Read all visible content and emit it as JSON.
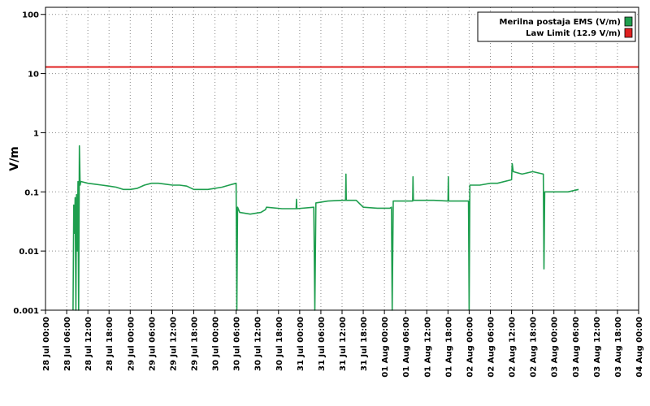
{
  "chart_data": {
    "type": "line",
    "title": "",
    "xlabel": "",
    "ylabel": "V/m",
    "y_scale": "log",
    "ylim": [
      0.001,
      100
    ],
    "y_ticks": [
      {
        "value": 100,
        "label": "100"
      },
      {
        "value": 10,
        "label": "10"
      },
      {
        "value": 1,
        "label": "1"
      },
      {
        "value": 0.1,
        "label": "0.1"
      },
      {
        "value": 0.01,
        "label": "0.01"
      },
      {
        "value": 0.001,
        "label": "0.001"
      }
    ],
    "x_unit": "hours since first tick (28 Jul 00:00)",
    "xlim": [
      0,
      168
    ],
    "x_ticks": [
      "28 Jul 00:00",
      "28 Jul 06:00",
      "28 Jul 12:00",
      "28 Jul 18:00",
      "29 Jul 00:00",
      "29 Jul 06:00",
      "29 Jul 12:00",
      "29 Jul 18:00",
      "30 Jul 00:00",
      "30 Jul 06:00",
      "30 Jul 12:00",
      "30 Jul 18:00",
      "31 Jul 00:00",
      "31 Jul 06:00",
      "31 Jul 12:00",
      "31 Jul 18:00",
      "01 Aug 00:00",
      "01 Aug 06:00",
      "01 Aug 12:00",
      "01 Aug 18:00",
      "02 Aug 00:00",
      "02 Aug 06:00",
      "02 Aug 12:00",
      "02 Aug 18:00",
      "03 Aug 00:00",
      "03 Aug 06:00",
      "03 Aug 12:00",
      "03 Aug 18:00",
      "04 Aug 00:00"
    ],
    "grid": true,
    "legend_position": "top-right",
    "series": [
      {
        "name": "Merilna postaja EMS (V/m)",
        "color": "#1e9e4e",
        "points": [
          [
            7.8,
            0.001
          ],
          [
            8.0,
            0.06
          ],
          [
            8.2,
            0.02
          ],
          [
            8.4,
            0.08
          ],
          [
            8.6,
            0.001
          ],
          [
            8.8,
            0.09
          ],
          [
            9.0,
            0.01
          ],
          [
            9.2,
            0.15
          ],
          [
            9.4,
            0.001
          ],
          [
            9.6,
            0.6
          ],
          [
            9.8,
            0.13
          ],
          [
            10.0,
            0.15
          ],
          [
            12,
            0.14
          ],
          [
            14,
            0.135
          ],
          [
            16,
            0.13
          ],
          [
            18,
            0.125
          ],
          [
            20,
            0.12
          ],
          [
            22,
            0.11
          ],
          [
            24,
            0.11
          ],
          [
            26,
            0.115
          ],
          [
            28,
            0.13
          ],
          [
            30,
            0.14
          ],
          [
            32,
            0.14
          ],
          [
            34,
            0.135
          ],
          [
            36,
            0.13
          ],
          [
            38,
            0.13
          ],
          [
            40,
            0.125
          ],
          [
            42,
            0.11
          ],
          [
            44,
            0.11
          ],
          [
            46,
            0.11
          ],
          [
            48,
            0.115
          ],
          [
            50,
            0.12
          ],
          [
            52,
            0.13
          ],
          [
            53,
            0.135
          ],
          [
            54.0,
            0.14
          ],
          [
            54.2,
            0.001
          ],
          [
            54.4,
            0.055
          ],
          [
            55,
            0.045
          ],
          [
            58,
            0.042
          ],
          [
            61,
            0.045
          ],
          [
            62.3,
            0.05
          ],
          [
            62.6,
            0.055
          ],
          [
            67,
            0.052
          ],
          [
            71,
            0.052
          ],
          [
            71.1,
            0.075
          ],
          [
            71.2,
            0.052
          ],
          [
            76,
            0.055
          ],
          [
            76.3,
            0.001
          ],
          [
            76.6,
            0.065
          ],
          [
            80,
            0.07
          ],
          [
            84,
            0.072
          ],
          [
            85,
            0.072
          ],
          [
            85.1,
            0.2
          ],
          [
            85.2,
            0.072
          ],
          [
            88,
            0.072
          ],
          [
            90,
            0.055
          ],
          [
            94,
            0.053
          ],
          [
            97.5,
            0.053
          ],
          [
            98.0,
            0.055
          ],
          [
            98.2,
            0.001
          ],
          [
            98.5,
            0.07
          ],
          [
            101,
            0.07
          ],
          [
            104,
            0.07
          ],
          [
            104.1,
            0.18
          ],
          [
            104.2,
            0.072
          ],
          [
            110,
            0.072
          ],
          [
            114,
            0.07
          ],
          [
            114.1,
            0.18
          ],
          [
            114.2,
            0.07
          ],
          [
            119.8,
            0.07
          ],
          [
            120.0,
            0.001
          ],
          [
            120.2,
            0.13
          ],
          [
            123,
            0.13
          ],
          [
            126,
            0.14
          ],
          [
            128,
            0.14
          ],
          [
            132,
            0.16
          ],
          [
            132.2,
            0.3
          ],
          [
            132.5,
            0.22
          ],
          [
            135,
            0.2
          ],
          [
            138,
            0.22
          ],
          [
            141,
            0.2
          ],
          [
            141.2,
            0.005
          ],
          [
            141.4,
            0.1
          ],
          [
            145,
            0.1
          ],
          [
            148,
            0.1
          ],
          [
            151,
            0.11
          ]
        ]
      }
    ],
    "reference_lines": [
      {
        "name": "Law Limit (12.9 V/m)",
        "value": 12.9,
        "color": "#e02020"
      }
    ]
  }
}
